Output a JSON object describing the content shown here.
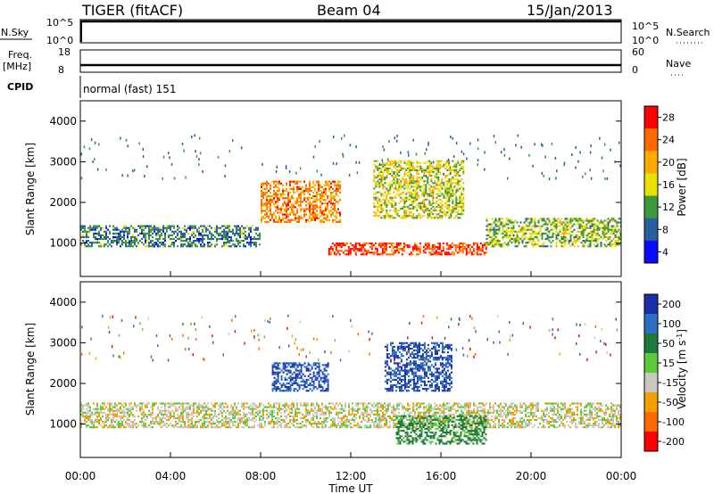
{
  "header": {
    "title": "TIGER (fitACF)",
    "beam": "Beam 04",
    "date": "15/Jan/2013"
  },
  "status_panels": {
    "nsky": {
      "label": "N.Sky",
      "ticks": [
        "10^5",
        "10^0"
      ]
    },
    "nsearch": {
      "label": "N.Search",
      "ticks": [
        "10^5",
        "10^0"
      ]
    },
    "freq": {
      "label_line1": "Freq.",
      "label_line2": "[MHz]",
      "ticks": [
        "18",
        "8"
      ]
    },
    "nave": {
      "label": "Nave",
      "ticks": [
        "60",
        "0"
      ]
    },
    "cpid": {
      "label": "CPID",
      "value": "normal (fast) 151"
    }
  },
  "chart_data": [
    {
      "type": "heatmap",
      "title": "",
      "xlabel": "",
      "ylabel": "Slant Range [km]",
      "ylim": [
        180,
        4500
      ],
      "yticks": [
        "4000",
        "3000",
        "2000",
        "1000"
      ],
      "colorbar_label": "Power [dB]",
      "colorbar_ticks": [
        "28",
        "24",
        "20",
        "16",
        "12",
        "8",
        "4"
      ],
      "colorbar_colors": [
        "#ff0000",
        "#ff6a00",
        "#ffaa00",
        "#e8e000",
        "#3c9a3c",
        "#2a5f9e",
        "#0a0aff"
      ],
      "observed_features": [
        {
          "time_start": "00:00",
          "time_end": "08:00",
          "range_km": [
            900,
            1400
          ],
          "power_db": 10
        },
        {
          "time_start": "08:00",
          "time_end": "11:30",
          "range_km": [
            1500,
            2500
          ],
          "power_db": 22
        },
        {
          "time_start": "11:00",
          "time_end": "18:00",
          "range_km": [
            700,
            1000
          ],
          "power_db": 26
        },
        {
          "time_start": "13:00",
          "time_end": "17:00",
          "range_km": [
            1600,
            3000
          ],
          "power_db": 16
        },
        {
          "time_start": "18:00",
          "time_end": "24:00",
          "range_km": [
            900,
            1600
          ],
          "power_db": 14
        }
      ]
    },
    {
      "type": "heatmap",
      "title": "",
      "xlabel": "Time UT",
      "ylabel": "Slant Range [km]",
      "ylim": [
        180,
        4500
      ],
      "yticks": [
        "4000",
        "3000",
        "2000",
        "1000"
      ],
      "xticks": [
        "00:00",
        "04:00",
        "08:00",
        "12:00",
        "16:00",
        "20:00",
        "00:00"
      ],
      "colorbar_label_main": "Velocity [m s",
      "colorbar_label_sup": "-1",
      "colorbar_label_end": "]",
      "colorbar_ticks": [
        "200",
        "100",
        "50",
        "15",
        "-15",
        "-50",
        "-100",
        "-200"
      ],
      "colorbar_colors": [
        "#1a2fa8",
        "#2d6fc0",
        "#1f7a3a",
        "#5cc83c",
        "#c8c8c0",
        "#f5a000",
        "#ff6a00",
        "#ff0000"
      ],
      "observed_features": [
        {
          "time_start": "00:00",
          "time_end": "24:00",
          "range_km": [
            900,
            1500
          ],
          "velocity_ms": 0
        },
        {
          "time_start": "08:30",
          "time_end": "11:00",
          "range_km": [
            1800,
            2500
          ],
          "velocity_ms": 150
        },
        {
          "time_start": "13:30",
          "time_end": "16:30",
          "range_km": [
            1800,
            3000
          ],
          "velocity_ms": 150
        },
        {
          "time_start": "14:00",
          "time_end": "18:00",
          "range_km": [
            500,
            1200
          ],
          "velocity_ms": 40
        }
      ]
    }
  ]
}
